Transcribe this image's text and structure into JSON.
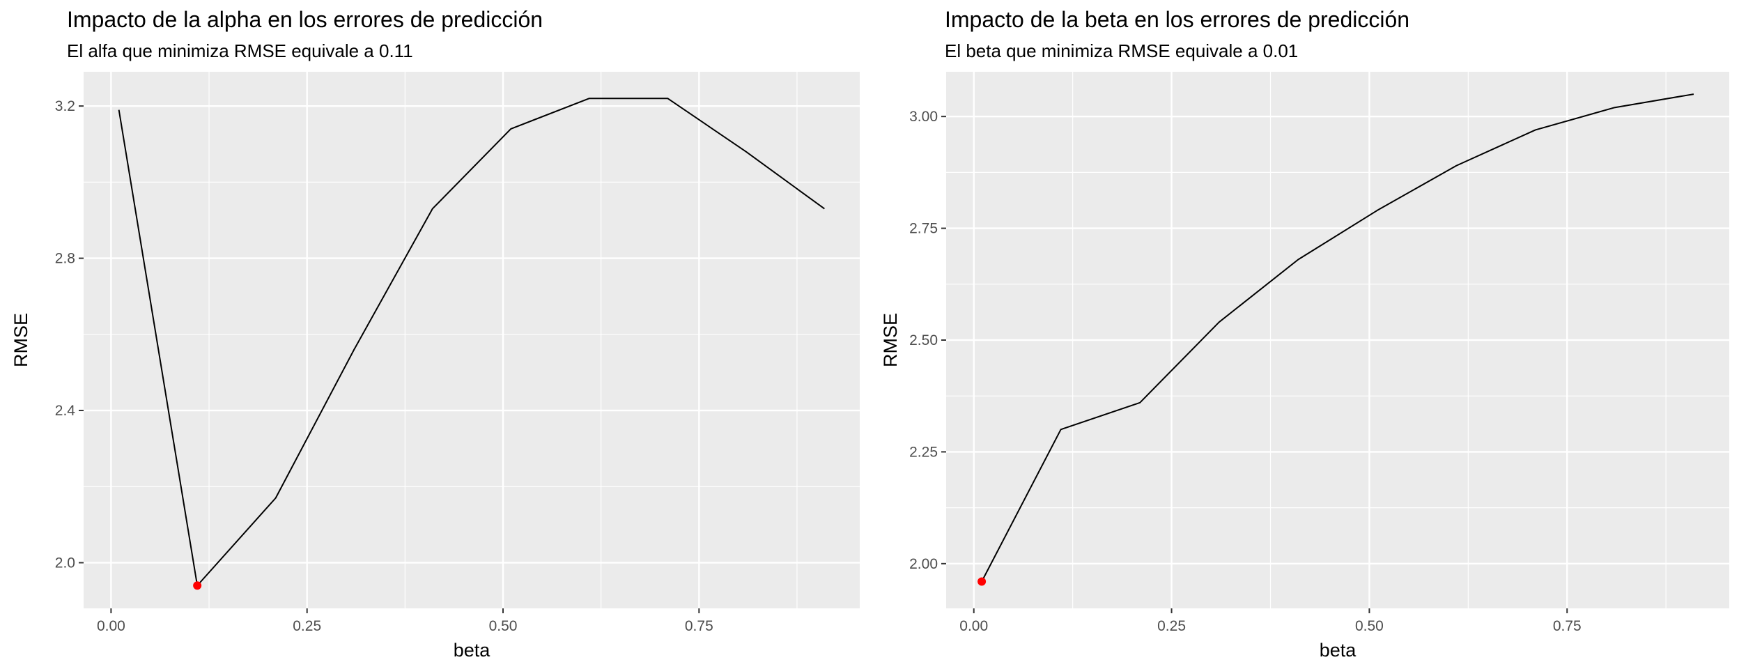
{
  "chart_data": [
    {
      "type": "line",
      "title": "Impacto de la alpha en los errores de predicción",
      "subtitle": "El alfa que minimiza RMSE equivale a 0.11",
      "xlabel": "beta",
      "ylabel": "RMSE",
      "xlim": [
        -0.035,
        0.955
      ],
      "ylim": [
        1.88,
        3.29
      ],
      "xticks": [
        0.0,
        0.25,
        0.5,
        0.75
      ],
      "xtick_labels": [
        "0.00",
        "0.25",
        "0.50",
        "0.75"
      ],
      "yticks": [
        2.0,
        2.4,
        2.8,
        3.2
      ],
      "ytick_labels": [
        "2.0",
        "2.4",
        "2.8",
        "3.2"
      ],
      "grid": true,
      "background": "#ebebeb",
      "line_color": "#000000",
      "highlight_color": "#ff0000",
      "x": [
        0.01,
        0.11,
        0.21,
        0.31,
        0.41,
        0.51,
        0.61,
        0.71,
        0.81,
        0.91
      ],
      "y": [
        3.19,
        1.94,
        2.17,
        2.56,
        2.93,
        3.14,
        3.22,
        3.22,
        3.08,
        2.93
      ],
      "highlight_point": {
        "x": 0.11,
        "y": 1.94
      }
    },
    {
      "type": "line",
      "title": "Impacto de la beta en los errores de predicción",
      "subtitle": "El beta que minimiza RMSE equivale a 0.01",
      "xlabel": "beta",
      "ylabel": "RMSE",
      "xlim": [
        -0.035,
        0.955
      ],
      "ylim": [
        1.9,
        3.1
      ],
      "xticks": [
        0.0,
        0.25,
        0.5,
        0.75
      ],
      "xtick_labels": [
        "0.00",
        "0.25",
        "0.50",
        "0.75"
      ],
      "yticks": [
        2.0,
        2.25,
        2.5,
        2.75,
        3.0
      ],
      "ytick_labels": [
        "2.00",
        "2.25",
        "2.50",
        "2.75",
        "3.00"
      ],
      "grid": true,
      "background": "#ebebeb",
      "line_color": "#000000",
      "highlight_color": "#ff0000",
      "x": [
        0.01,
        0.11,
        0.21,
        0.31,
        0.41,
        0.51,
        0.61,
        0.71,
        0.81,
        0.91
      ],
      "y": [
        1.96,
        2.3,
        2.36,
        2.54,
        2.68,
        2.79,
        2.89,
        2.97,
        3.02,
        3.05
      ],
      "highlight_point": {
        "x": 0.01,
        "y": 1.96
      }
    }
  ]
}
